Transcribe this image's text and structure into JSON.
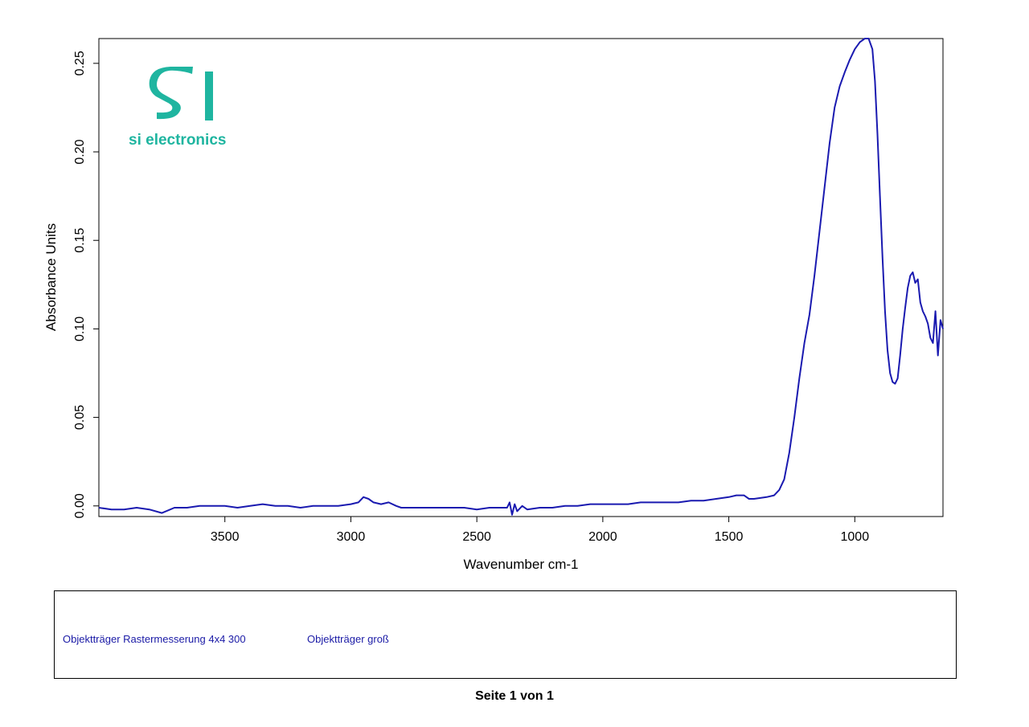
{
  "logo": {
    "text": "si electronics",
    "color": "#1fb5a0"
  },
  "chart_data": {
    "type": "line",
    "title": "",
    "xlabel": "Wavenumber cm-1",
    "ylabel": "Absorbance Units",
    "x_reversed": true,
    "xlim": [
      4000,
      650
    ],
    "ylim": [
      -0.006,
      0.264
    ],
    "x_ticks": [
      3500,
      3000,
      2500,
      2000,
      1500,
      1000
    ],
    "x_tick_labels": [
      "3500",
      "3000",
      "2500",
      "2000",
      "1500",
      "1000"
    ],
    "y_ticks": [
      0.0,
      0.05,
      0.1,
      0.15,
      0.2,
      0.25
    ],
    "y_tick_labels": [
      "0.00",
      "0.05",
      "0.10",
      "0.15",
      "0.20",
      "0.25"
    ],
    "grid": false,
    "series_color": "#1a1ab0",
    "series": [
      {
        "x": [
          4000,
          3950,
          3900,
          3850,
          3800,
          3750,
          3700,
          3650,
          3600,
          3550,
          3500,
          3450,
          3400,
          3350,
          3300,
          3250,
          3200,
          3150,
          3100,
          3050,
          3000,
          2970,
          2950,
          2930,
          2910,
          2880,
          2850,
          2820,
          2800,
          2750,
          2700,
          2650,
          2600,
          2550,
          2500,
          2450,
          2400,
          2380,
          2370,
          2360,
          2350,
          2340,
          2320,
          2300,
          2250,
          2200,
          2150,
          2100,
          2050,
          2000,
          1950,
          1900,
          1850,
          1800,
          1750,
          1700,
          1650,
          1600,
          1550,
          1500,
          1470,
          1440,
          1420,
          1400,
          1350,
          1320,
          1300,
          1280,
          1260,
          1240,
          1220,
          1200,
          1180,
          1160,
          1140,
          1120,
          1100,
          1080,
          1060,
          1040,
          1020,
          1000,
          980,
          960,
          945,
          930,
          920,
          910,
          900,
          890,
          880,
          870,
          860,
          850,
          840,
          830,
          820,
          810,
          800,
          790,
          780,
          770,
          760,
          750,
          740,
          730,
          720,
          710,
          700,
          690,
          680,
          670,
          660,
          650
        ],
        "y": [
          -0.001,
          -0.002,
          -0.002,
          -0.001,
          -0.002,
          -0.004,
          -0.001,
          -0.001,
          0.0,
          0.0,
          0.0,
          -0.001,
          0.0,
          0.001,
          0.0,
          0.0,
          -0.001,
          0.0,
          0.0,
          0.0,
          0.001,
          0.002,
          0.005,
          0.004,
          0.002,
          0.001,
          0.002,
          0.0,
          -0.001,
          -0.001,
          -0.001,
          -0.001,
          -0.001,
          -0.001,
          -0.002,
          -0.001,
          -0.001,
          -0.001,
          0.002,
          -0.005,
          0.001,
          -0.003,
          0.0,
          -0.002,
          -0.001,
          -0.001,
          0.0,
          0.0,
          0.001,
          0.001,
          0.001,
          0.001,
          0.002,
          0.002,
          0.002,
          0.002,
          0.003,
          0.003,
          0.004,
          0.005,
          0.006,
          0.006,
          0.004,
          0.004,
          0.005,
          0.006,
          0.009,
          0.015,
          0.03,
          0.05,
          0.072,
          0.092,
          0.108,
          0.13,
          0.155,
          0.18,
          0.205,
          0.225,
          0.237,
          0.245,
          0.252,
          0.258,
          0.262,
          0.264,
          0.264,
          0.258,
          0.24,
          0.21,
          0.175,
          0.14,
          0.11,
          0.088,
          0.075,
          0.07,
          0.069,
          0.072,
          0.085,
          0.1,
          0.112,
          0.123,
          0.13,
          0.132,
          0.126,
          0.128,
          0.115,
          0.11,
          0.107,
          0.103,
          0.095,
          0.092,
          0.11,
          0.085,
          0.105,
          0.1
        ]
      }
    ]
  },
  "legend": {
    "entries": [
      "Objektträger Rastermesserung 4x4 300",
      "Objektträger groß"
    ],
    "color": "#1a1aa6"
  },
  "footer": {
    "text": "Seite 1 von 1"
  }
}
